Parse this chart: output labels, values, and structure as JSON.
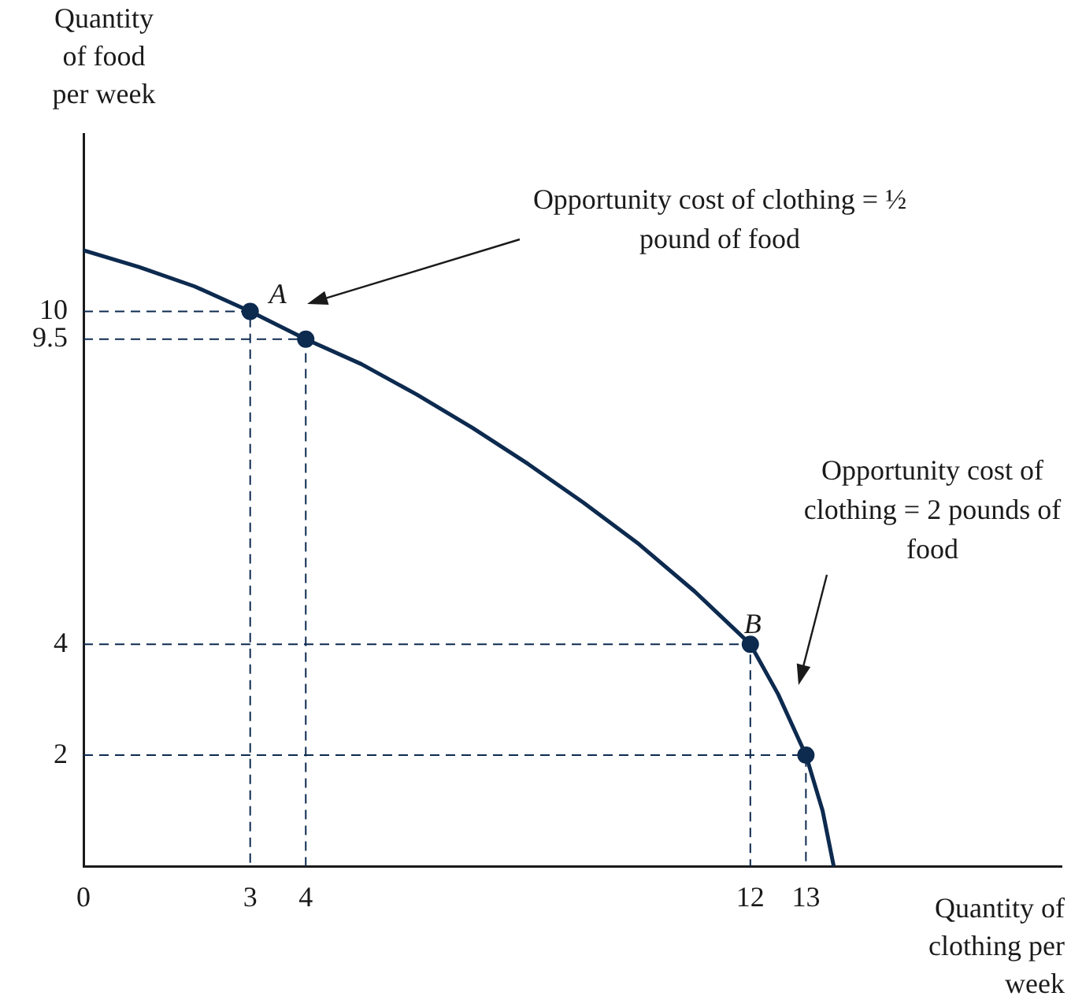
{
  "chart_data": {
    "type": "line",
    "xlabel": "Quantity of clothing per week",
    "ylabel": "Quantity of food per week",
    "xlim": [
      0,
      17.6
    ],
    "ylim": [
      0,
      13.2
    ],
    "xticks": [
      0,
      3,
      4,
      12,
      13
    ],
    "yticks": [
      2,
      4,
      9.5,
      10
    ],
    "grid": false,
    "legend": false,
    "series": [
      {
        "color": "#0d2a4f",
        "marker": "none",
        "line_style": "solid",
        "x": [
          0,
          1,
          2,
          3,
          4,
          5,
          6,
          7,
          8,
          9,
          10,
          11,
          12,
          12.5,
          13,
          13.3,
          13.5
        ],
        "values": [
          11.1,
          10.8,
          10.45,
          10,
          9.5,
          9.05,
          8.5,
          7.9,
          7.25,
          6.55,
          5.8,
          4.95,
          4,
          3.1,
          2,
          1,
          0
        ]
      },
      {
        "type": "scatter",
        "color": "#0d2a4f",
        "marker": "circle",
        "x": [
          3,
          4,
          12,
          13
        ],
        "values": [
          10,
          9.5,
          4,
          2
        ]
      },
      {
        "color": "#0d2a4f",
        "marker": "none",
        "line_style": "dashed",
        "x": [
          0,
          3,
          3
        ],
        "values": [
          10,
          10,
          0
        ]
      },
      {
        "color": "#0d2a4f",
        "marker": "none",
        "line_style": "dashed",
        "x": [
          0,
          4,
          4
        ],
        "values": [
          9.5,
          9.5,
          0
        ]
      },
      {
        "color": "#0d2a4f",
        "marker": "none",
        "line_style": "dashed",
        "x": [
          0,
          12,
          12
        ],
        "values": [
          4,
          4,
          0
        ]
      },
      {
        "color": "#0d2a4f",
        "marker": "none",
        "line_style": "dashed",
        "x": [
          0,
          13,
          13
        ],
        "values": [
          2,
          2,
          0
        ]
      }
    ],
    "annotations": [
      {
        "text": "A",
        "x": 3,
        "y": 10
      },
      {
        "text": "B",
        "x": 12,
        "y": 4
      },
      "Opportunity cost of clothing = ½ pound of food",
      "Opportunity cost of clothing = 2 pounds of food"
    ]
  }
}
